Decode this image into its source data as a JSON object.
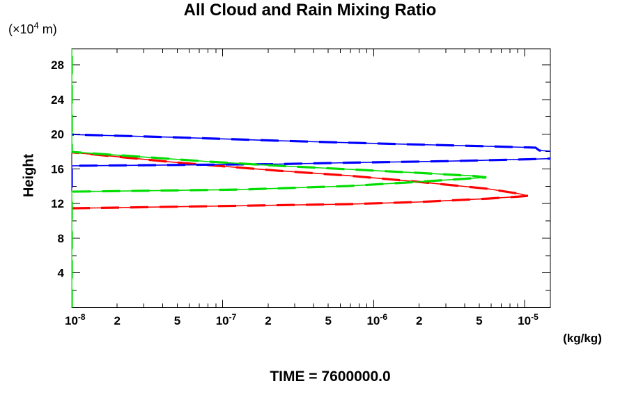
{
  "chart_data": {
    "type": "line",
    "title": "All Cloud and Rain Mixing Ratio",
    "footer": "TIME = 7600000.0",
    "legend": false,
    "grid": false,
    "x_axis": {
      "unit": "(kg/kg)",
      "scale": "log",
      "range_kg_per_kg": [
        1e-08,
        1.48e-05
      ],
      "decade_base": "10",
      "decade_exponents": [
        -8,
        -7,
        -6,
        -5
      ],
      "labeled_minor_multipliers": [
        2,
        5
      ]
    },
    "y_axis": {
      "label": "Height",
      "unit_prefix": "(×10",
      "unit_exp": "4",
      "unit_suffix": " m)",
      "range": [
        0,
        29.85
      ],
      "major_ticks": [
        4,
        8,
        12,
        16,
        20,
        24,
        28
      ],
      "minor_ticks": [
        2,
        6,
        10,
        14,
        18,
        22,
        26
      ]
    },
    "series": [
      {
        "name": "rain-mixing-ratio-red",
        "color": "#ff0000",
        "points": [
          [
            1e-08,
            11.45
          ],
          [
            8.1e-08,
            11.69
          ],
          [
            6.8e-07,
            11.93
          ],
          [
            1.97e-06,
            12.17
          ],
          [
            5.7e-06,
            12.57
          ],
          [
            9.2e-06,
            12.81
          ],
          [
            1.05e-05,
            12.89
          ],
          [
            9.2e-06,
            13.13
          ],
          [
            5.7e-06,
            13.7
          ],
          [
            1.97e-06,
            14.5
          ],
          [
            6.8e-07,
            15.22
          ],
          [
            2.35e-07,
            15.78
          ],
          [
            8.1e-08,
            16.43
          ],
          [
            4.8e-08,
            16.75
          ],
          [
            2.27e-08,
            17.31
          ],
          [
            1e-08,
            17.91
          ]
        ]
      },
      {
        "name": "cloud-mixing-ratio-blue",
        "color": "#0000ff",
        "points": [
          [
            1e-08,
            13.85
          ],
          [
            1e-08,
            16.35
          ],
          [
            4.8e-08,
            16.45
          ],
          [
            2.35e-07,
            16.55
          ],
          [
            6.8e-07,
            16.71
          ],
          [
            3.3e-06,
            16.9
          ],
          [
            1.2e-05,
            17.13
          ],
          [
            1.48e-05,
            17.19
          ],
          [
            4e-05,
            17.4
          ],
          [
            4e-05,
            17.8
          ],
          [
            1.48e-05,
            18.04
          ],
          [
            1.25e-05,
            18.12
          ],
          [
            1.18e-05,
            18.45
          ],
          [
            5.7e-06,
            18.6
          ],
          [
            1.16e-06,
            18.91
          ],
          [
            2.35e-07,
            19.24
          ],
          [
            4.8e-08,
            19.64
          ],
          [
            1e-08,
            19.96
          ],
          [
            1e-08,
            20.02
          ]
        ]
      },
      {
        "name": "cloud-mixing-ratio-green",
        "color": "#00dd00",
        "points": [
          [
            1e-08,
            0
          ],
          [
            1e-08,
            13.37
          ],
          [
            1.31e-07,
            13.61
          ],
          [
            6.8e-07,
            14.02
          ],
          [
            1.97e-06,
            14.5
          ],
          [
            3.7e-06,
            14.82
          ],
          [
            5.57e-06,
            15.02
          ],
          [
            4.6e-06,
            15.18
          ],
          [
            1.97e-06,
            15.54
          ],
          [
            6.8e-07,
            15.95
          ],
          [
            2.35e-07,
            16.35
          ],
          [
            8.1e-08,
            16.83
          ],
          [
            2.8e-08,
            17.4
          ],
          [
            1e-08,
            17.95
          ],
          [
            1e-08,
            29.85
          ]
        ]
      }
    ]
  }
}
